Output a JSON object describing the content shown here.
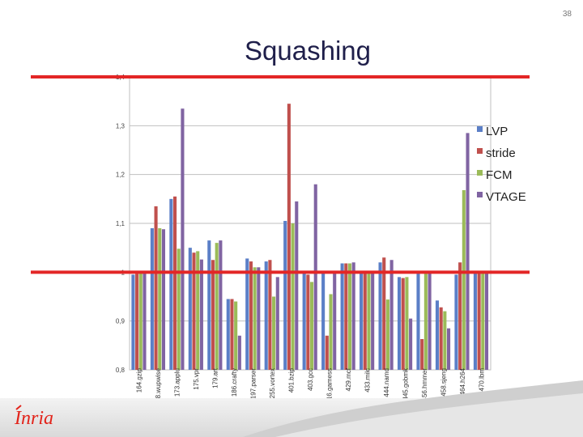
{
  "page_number": "38",
  "slide_title": "Squashing",
  "logo_text": "Inria",
  "chart_data": {
    "type": "bar",
    "categories": [
      "164.gzip",
      "168.wupwise",
      "173.applu",
      "175.vpr",
      "179.art",
      "186.crafty",
      "197.parser",
      "255.vortex",
      "401.bzip",
      "403.gcc",
      "416.gamess",
      "429.mcf",
      "433.milc",
      "444.namd",
      "445.gobmk",
      "456.hmmer",
      "458.sjeng",
      "464.h264",
      "470.lbm"
    ],
    "series": [
      {
        "name": "LVP",
        "color": "#5b7fc7",
        "values": [
          0.995,
          1.09,
          1.15,
          1.05,
          1.065,
          0.945,
          1.028,
          1.022,
          1.105,
          0.998,
          1.0,
          1.018,
          0.998,
          1.02,
          0.99,
          1.0,
          0.942,
          0.995,
          1.0
        ]
      },
      {
        "name": "stride",
        "color": "#c0504d",
        "values": [
          0.997,
          1.135,
          1.155,
          1.04,
          1.025,
          0.945,
          1.022,
          1.025,
          1.345,
          0.995,
          0.87,
          1.018,
          1.0,
          1.03,
          0.988,
          0.863,
          0.928,
          1.02,
          1.0
        ]
      },
      {
        "name": "FCM",
        "color": "#9bbb59",
        "values": [
          1.0,
          1.09,
          1.048,
          1.043,
          1.06,
          0.94,
          1.01,
          0.95,
          1.1,
          0.98,
          0.955,
          1.018,
          1.0,
          0.944,
          0.99,
          1.0,
          0.92,
          1.168,
          1.0
        ]
      },
      {
        "name": "VTAGE",
        "color": "#8064a2",
        "values": [
          1.0,
          1.088,
          1.335,
          1.026,
          1.065,
          0.87,
          1.01,
          0.99,
          1.145,
          1.18,
          1.0,
          1.02,
          1.0,
          1.025,
          0.905,
          1.0,
          0.885,
          1.285,
          1.0
        ]
      }
    ],
    "ylim": [
      0.8,
      1.4
    ],
    "yticks": [
      "0,8",
      "0,9",
      "1",
      "1,1",
      "1,2",
      "1,3",
      "1,4"
    ],
    "ytick_values": [
      0.8,
      0.9,
      1.0,
      1.1,
      1.2,
      1.3,
      1.4
    ],
    "grid": true,
    "legend": "right",
    "reference_lines": [
      1.4,
      1.0
    ],
    "reference_line_color": "#e32626"
  }
}
